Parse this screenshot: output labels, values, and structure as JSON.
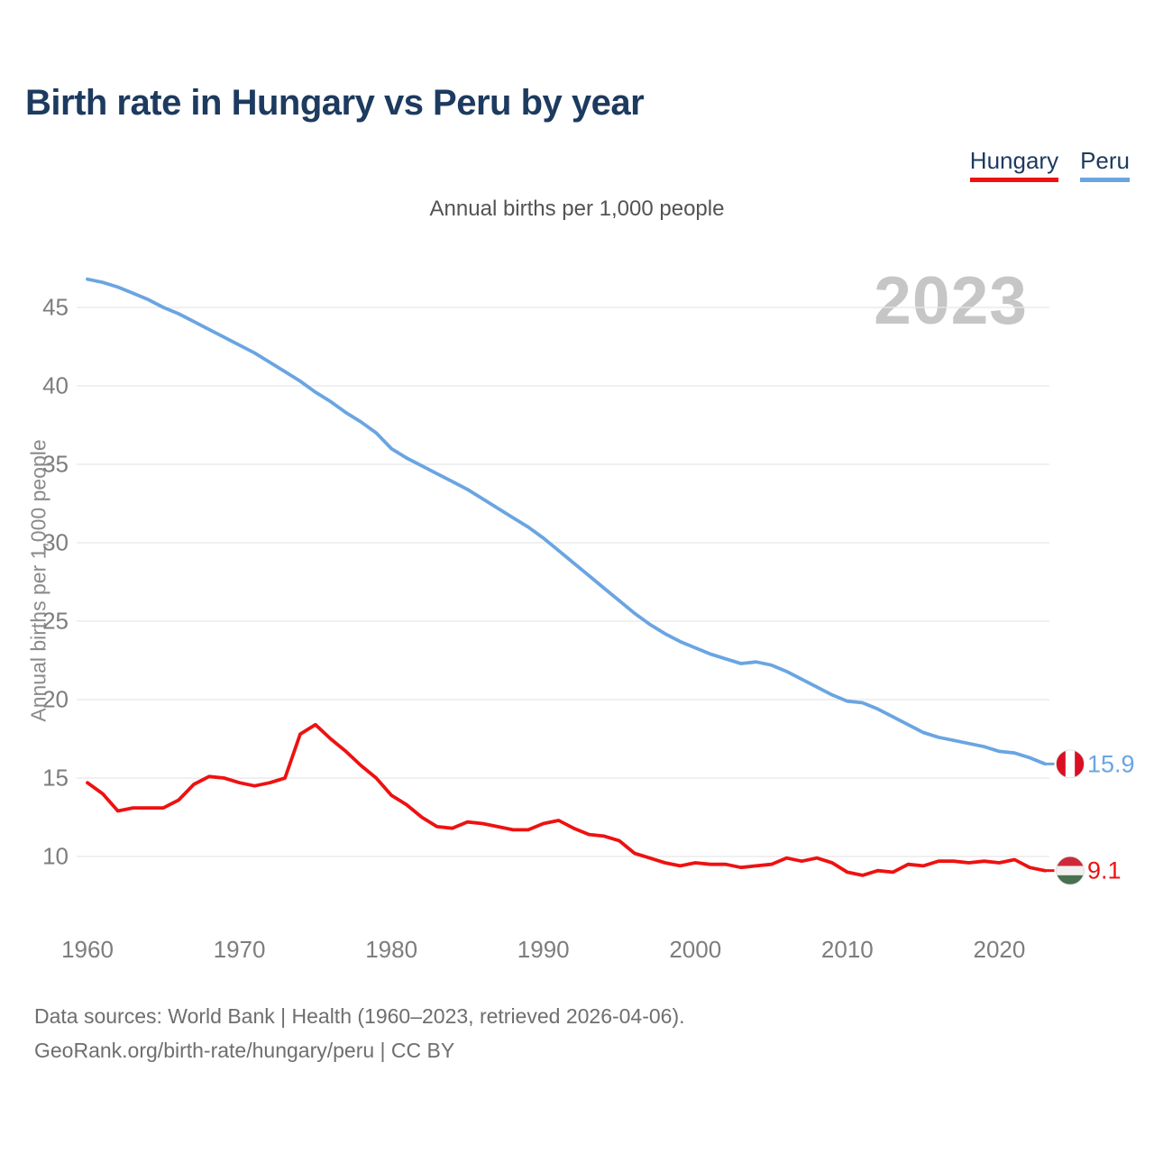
{
  "title": "Birth rate in Hungary vs Peru by year",
  "watermark_year": "2023",
  "footer": {
    "line1": "Data sources: World Bank | Health (1960–2023, retrieved 2026-04-06).",
    "line2": "GeoRank.org/birth-rate/hungary/peru | CC BY"
  },
  "colors": {
    "title_navy": "#1d3a5f",
    "axis_gray": "#7d7d7d",
    "gridline": "#e8e8e8",
    "watermark_gray": "#c6c6c6",
    "hungary_red": "#ee1111",
    "peru_blue": "#6aa5e2"
  },
  "chart_data": {
    "type": "line",
    "title": "Birth rate in Hungary vs Peru by year",
    "unit_label": "Annual births per 1,000 people",
    "ylabel": "Annual births per 1,000 people",
    "xlabel": "",
    "grid": true,
    "legend_position": "top-right",
    "ylim": [
      8,
      47.5
    ],
    "xlim": [
      1958.5,
      2029
    ],
    "y_ticks": [
      10,
      15,
      20,
      25,
      30,
      35,
      40,
      45
    ],
    "x_ticks": [
      1960,
      1970,
      1980,
      1990,
      2000,
      2010,
      2020
    ],
    "x": [
      1960,
      1961,
      1962,
      1963,
      1964,
      1965,
      1966,
      1967,
      1968,
      1969,
      1970,
      1971,
      1972,
      1973,
      1974,
      1975,
      1976,
      1977,
      1978,
      1979,
      1980,
      1981,
      1982,
      1983,
      1984,
      1985,
      1986,
      1987,
      1988,
      1989,
      1990,
      1991,
      1992,
      1993,
      1994,
      1995,
      1996,
      1997,
      1998,
      1999,
      2000,
      2001,
      2002,
      2003,
      2004,
      2005,
      2006,
      2007,
      2008,
      2009,
      2010,
      2011,
      2012,
      2013,
      2014,
      2015,
      2016,
      2017,
      2018,
      2019,
      2020,
      2021,
      2022,
      2023
    ],
    "series": [
      {
        "name": "Hungary",
        "color": "#ee1111",
        "end_label": "9.1",
        "flag": {
          "orientation": "horizontal",
          "colors": [
            "#CE2939",
            "#F0F0F0",
            "#477050"
          ]
        },
        "values": [
          14.7,
          14.0,
          12.9,
          13.1,
          13.1,
          13.1,
          13.6,
          14.6,
          15.1,
          15.0,
          14.7,
          14.5,
          14.7,
          15.0,
          17.8,
          18.4,
          17.5,
          16.7,
          15.8,
          15.0,
          13.9,
          13.3,
          12.5,
          11.9,
          11.8,
          12.2,
          12.1,
          11.9,
          11.7,
          11.7,
          12.1,
          12.3,
          11.8,
          11.4,
          11.3,
          11.0,
          10.2,
          9.9,
          9.6,
          9.4,
          9.6,
          9.5,
          9.5,
          9.3,
          9.4,
          9.5,
          9.9,
          9.7,
          9.9,
          9.6,
          9.0,
          8.8,
          9.1,
          9.0,
          9.5,
          9.4,
          9.7,
          9.7,
          9.6,
          9.7,
          9.6,
          9.8,
          9.3,
          9.1
        ]
      },
      {
        "name": "Peru",
        "color": "#6aa5e2",
        "end_label": "15.9",
        "flag": {
          "orientation": "vertical",
          "colors": [
            "#D91023",
            "#FFFFFF",
            "#D91023"
          ]
        },
        "values": [
          46.8,
          46.6,
          46.3,
          45.9,
          45.5,
          45.0,
          44.6,
          44.1,
          43.6,
          43.1,
          42.6,
          42.1,
          41.5,
          40.9,
          40.3,
          39.6,
          39.0,
          38.3,
          37.7,
          37.0,
          36.0,
          35.4,
          34.9,
          34.4,
          33.9,
          33.4,
          32.8,
          32.2,
          31.6,
          31.0,
          30.3,
          29.5,
          28.7,
          27.9,
          27.1,
          26.3,
          25.5,
          24.8,
          24.2,
          23.7,
          23.3,
          22.9,
          22.6,
          22.3,
          22.4,
          22.2,
          21.8,
          21.3,
          20.8,
          20.3,
          19.9,
          19.8,
          19.4,
          18.9,
          18.4,
          17.9,
          17.6,
          17.4,
          17.2,
          17.0,
          16.7,
          16.6,
          16.3,
          15.9
        ]
      }
    ]
  }
}
